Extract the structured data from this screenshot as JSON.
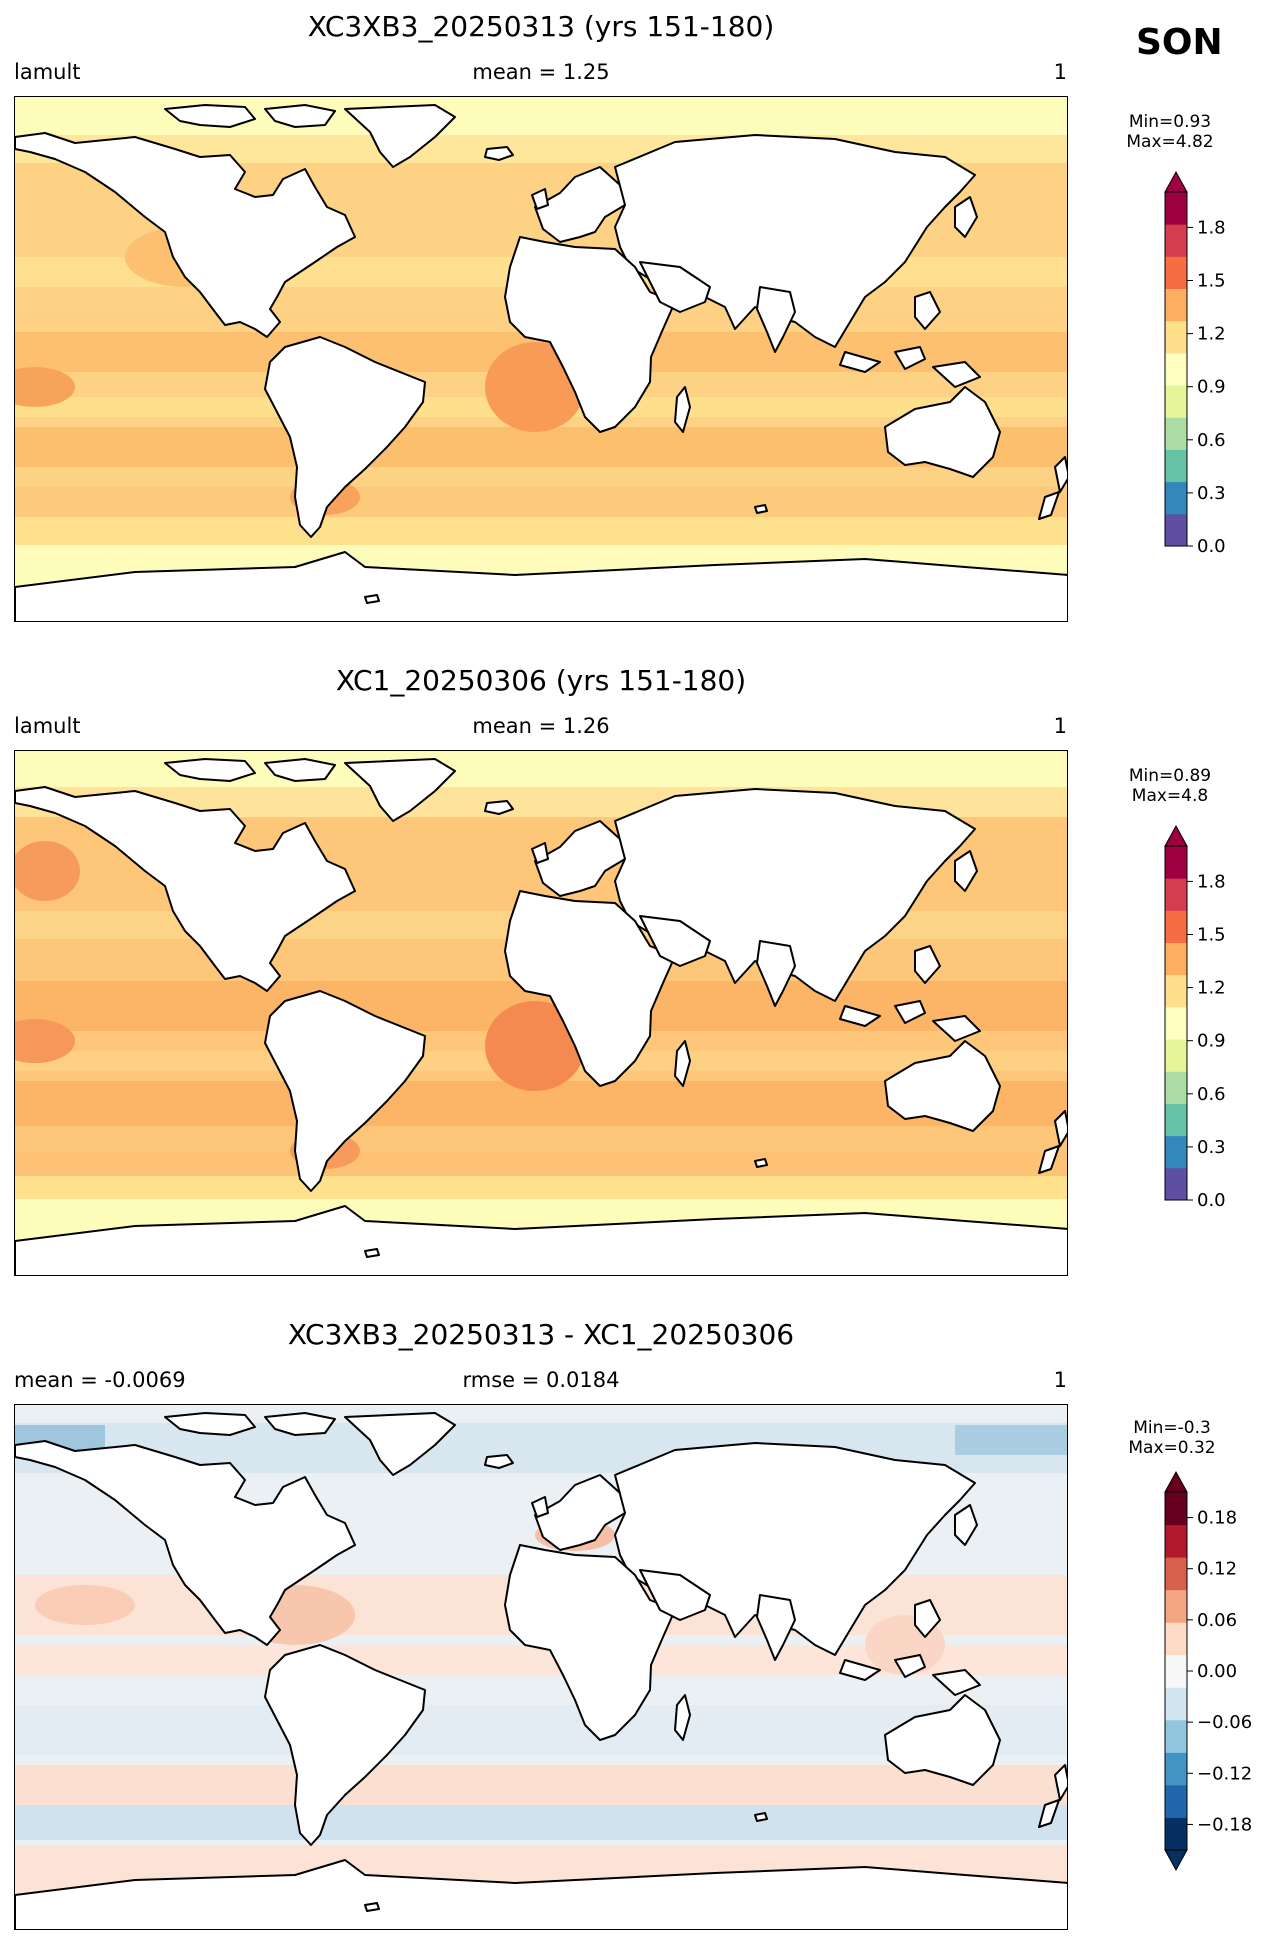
{
  "season": "SON",
  "panels": [
    {
      "title": "XC3XB3_20250313 (yrs 151-180)",
      "left_label": "lamult",
      "center_label": "mean = 1.25",
      "right_label": "1",
      "min_label": "Min=0.93",
      "max_label": "Max=4.82",
      "colorbar": {
        "ticks": [
          "0.0",
          "0.3",
          "0.6",
          "0.9",
          "1.2",
          "1.5",
          "1.8"
        ],
        "range": [
          0.0,
          2.0
        ],
        "extend": "max",
        "colormap": [
          "#5e4fa2",
          "#3288bd",
          "#66c2a5",
          "#abdda4",
          "#e6f598",
          "#ffffbf",
          "#fee08b",
          "#fdae61",
          "#f46d43",
          "#d53e4f",
          "#9e0142"
        ]
      }
    },
    {
      "title": "XC1_20250306 (yrs 151-180)",
      "left_label": "lamult",
      "center_label": "mean = 1.26",
      "right_label": "1",
      "min_label": "Min=0.89",
      "max_label": "Max=4.8",
      "colorbar": {
        "ticks": [
          "0.0",
          "0.3",
          "0.6",
          "0.9",
          "1.2",
          "1.5",
          "1.8"
        ],
        "range": [
          0.0,
          2.0
        ],
        "extend": "max",
        "colormap": [
          "#5e4fa2",
          "#3288bd",
          "#66c2a5",
          "#abdda4",
          "#e6f598",
          "#ffffbf",
          "#fee08b",
          "#fdae61",
          "#f46d43",
          "#d53e4f",
          "#9e0142"
        ]
      }
    },
    {
      "title": "XC3XB3_20250313 - XC1_20250306",
      "left_label": "mean = -0.0069",
      "center_label": "rmse = 0.0184",
      "right_label": "1",
      "min_label": "Min=-0.3",
      "max_label": "Max=0.32",
      "colorbar": {
        "ticks": [
          "−0.18",
          "−0.12",
          "−0.06",
          "0.00",
          "0.06",
          "0.12",
          "0.18"
        ],
        "range": [
          -0.21,
          0.21
        ],
        "extend": "both",
        "colormap": [
          "#053061",
          "#2166ac",
          "#4393c3",
          "#92c5de",
          "#d1e5f0",
          "#f7f7f7",
          "#fddbc7",
          "#f4a582",
          "#d6604d",
          "#b2182b",
          "#67001f"
        ]
      }
    }
  ],
  "colors": {
    "ocean_panel1": "#fdd285",
    "ocean_panel2": "#fdc679",
    "ocean_diff": "#e6eef3",
    "land": "#ffffff",
    "coast": "#000000"
  }
}
